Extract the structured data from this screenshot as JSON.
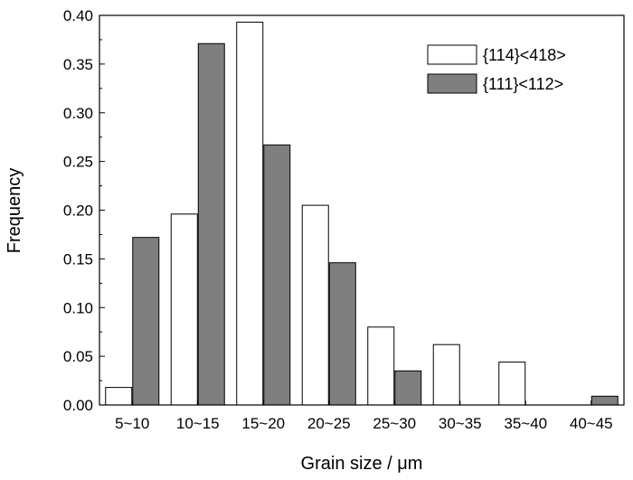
{
  "chart_data": {
    "type": "bar",
    "title": "",
    "xlabel": "Grain size / μm",
    "ylabel": "Frequency",
    "categories": [
      "5~10",
      "10~15",
      "15~20",
      "20~25",
      "25~30",
      "30~35",
      "35~40",
      "40~45"
    ],
    "series": [
      {
        "name": "{114}<418>",
        "color": "#ffffff",
        "values": [
          0.018,
          0.196,
          0.393,
          0.205,
          0.08,
          0.062,
          0.044,
          0.0
        ]
      },
      {
        "name": "{111}<112>",
        "color": "#7f7f7f",
        "values": [
          0.172,
          0.371,
          0.267,
          0.146,
          0.035,
          0.0,
          0.0,
          0.009
        ]
      }
    ],
    "ylim": [
      0,
      0.4
    ],
    "yticks": [
      "0.00",
      "0.05",
      "0.10",
      "0.15",
      "0.20",
      "0.25",
      "0.30",
      "0.35",
      "0.40"
    ],
    "grid": false,
    "legend_position": "top-right"
  }
}
